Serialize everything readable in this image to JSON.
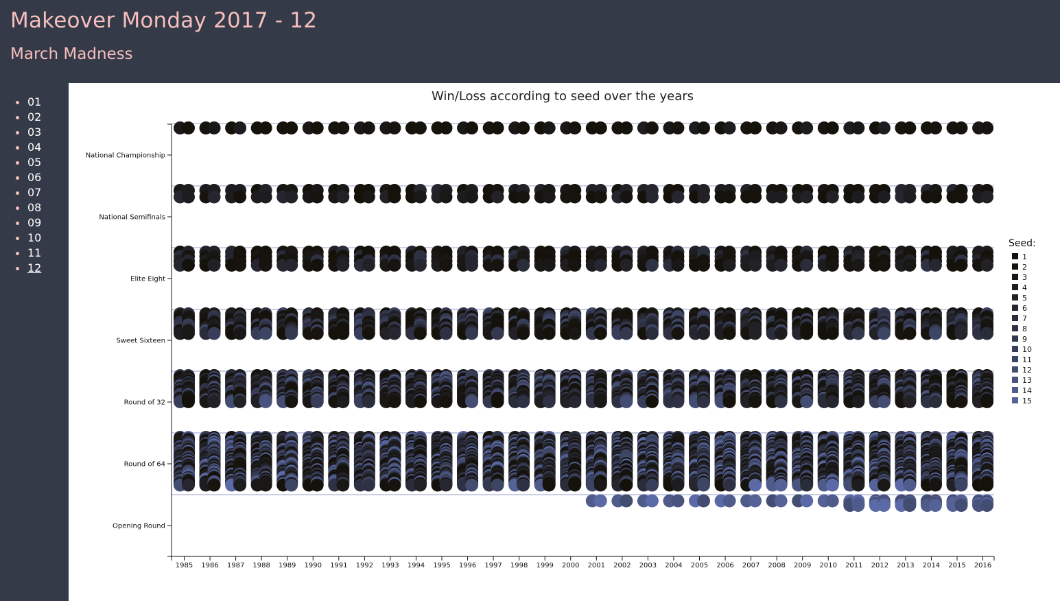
{
  "header": {
    "title": "Makeover Monday 2017 - 12",
    "subtitle": "March Madness"
  },
  "nav": {
    "items": [
      "01",
      "02",
      "03",
      "04",
      "05",
      "06",
      "07",
      "08",
      "09",
      "10",
      "11",
      "12"
    ],
    "active": "12"
  },
  "colors": {
    "background": "#343a48",
    "accent": "#f6bfbd",
    "seed_dark": "#15120c",
    "seed_light": "#5b6aa6",
    "round_line": "#b9bfdc"
  },
  "chart_data": {
    "type": "scatter",
    "title": "Win/Loss according to seed over the years",
    "x": [
      1985,
      1986,
      1987,
      1988,
      1989,
      1990,
      1991,
      1992,
      1993,
      1994,
      1995,
      1996,
      1997,
      1998,
      1999,
      2000,
      2001,
      2002,
      2003,
      2004,
      2005,
      2006,
      2007,
      2008,
      2009,
      2010,
      2011,
      2012,
      2013,
      2014,
      2015,
      2016
    ],
    "rounds": [
      "National Championship",
      "National Semifinals",
      "Elite Eight",
      "Sweet Sixteen",
      "Round of 32",
      "Round of 64",
      "Opening Round"
    ],
    "round_team_counts": [
      2,
      4,
      8,
      16,
      32,
      64,
      2
    ],
    "opening_round_start": 2001,
    "expanded_opening_round_start": 2011,
    "expanded_opening_round_count": 8,
    "legend": {
      "title": "Seed:",
      "seeds": [
        "1",
        "2",
        "3",
        "4",
        "5",
        "6",
        "7",
        "8",
        "9",
        "10",
        "11",
        "12",
        "13",
        "14",
        "15"
      ]
    },
    "grid": false,
    "legend_position": "right"
  }
}
